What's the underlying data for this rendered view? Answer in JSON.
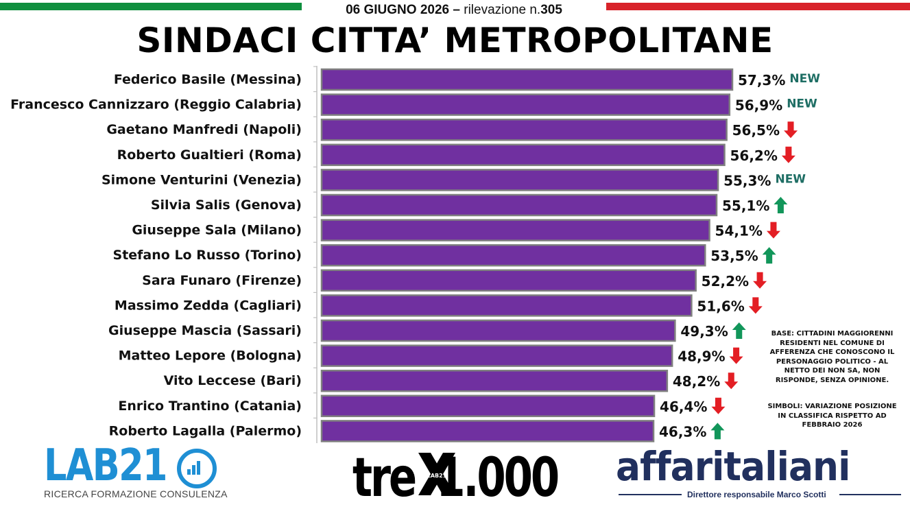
{
  "header": {
    "date": "06 GIUGNO 2026",
    "dash": "–",
    "survey_label": "rilevazione n.",
    "survey_number": "305",
    "title": "SINDACI CITTA’ METROPOLITANE"
  },
  "colors": {
    "bar": "#7030a0",
    "bar_stroke": "#7f7f7f",
    "up": "#12965a",
    "down": "#e31e24",
    "new": "#1e6e64",
    "flag_green": "#0f8f3e",
    "flag_red": "#d8232a"
  },
  "chart_data": {
    "type": "bar",
    "orientation": "horizontal",
    "categories": [
      "Federico Basile (Messina)",
      "Francesco Cannizzaro (Reggio Calabria)",
      "Gaetano Manfredi (Napoli)",
      "Roberto Gualtieri (Roma)",
      "Simone Venturini  (Venezia)",
      "Silvia Salis (Genova)",
      "Giuseppe Sala (Milano)",
      "Stefano Lo Russo (Torino)",
      "Sara Funaro (Firenze)",
      "Massimo Zedda (Cagliari)",
      "Giuseppe Mascia (Sassari)",
      "Matteo Lepore (Bologna)",
      "Vito Leccese (Bari)",
      "Enrico Trantino (Catania)",
      "Roberto Lagalla (Palermo)"
    ],
    "values": [
      57.3,
      56.9,
      56.5,
      56.2,
      55.3,
      55.1,
      54.1,
      53.5,
      52.2,
      51.6,
      49.3,
      48.9,
      48.2,
      46.4,
      46.3
    ],
    "value_labels": [
      "57,3%",
      "56,9%",
      "56,5%",
      "56,2%",
      "55,3%",
      "55,1%",
      "54,1%",
      "53,5%",
      "52,2%",
      "51,6%",
      "49,3%",
      "48,9%",
      "48,2%",
      "46,4%",
      "46,3%"
    ],
    "change": [
      "new",
      "new",
      "down",
      "down",
      "new",
      "up",
      "down",
      "up",
      "down",
      "down",
      "up",
      "down",
      "down",
      "down",
      "up"
    ],
    "new_label": "NEW",
    "xlim": [
      0,
      57.3
    ],
    "grid": false,
    "legend": "none"
  },
  "notes": {
    "base_lines": [
      "BASE: CITTADINI MAGGIORENNI",
      "RESIDENTI  NEL COMUNE DI",
      "AFFERENZA CHE CONOSCONO IL",
      "PERSONAGGIO POLITICO  - AL",
      "NETTO DEI NON SA, NON",
      "RISPONDE, SENZA OPINIONE."
    ],
    "symbols_lines": [
      "SIMBOLI: VARIAZIONE POSIZIONE",
      "IN CLASSIFICA RISPETTO AD",
      "FEBBRAIO 2026"
    ]
  },
  "logos": {
    "lab21": {
      "name": "LAB21",
      "tagline": "RICERCA FORMAZIONE CONSULENZA"
    },
    "trex": {
      "name_left": "tre",
      "name_right": "1.000",
      "mark": "LAB21"
    },
    "affaritaliani": {
      "name": "affaritaliani",
      "tagline": "Direttore responsabile Marco Scotti"
    }
  }
}
